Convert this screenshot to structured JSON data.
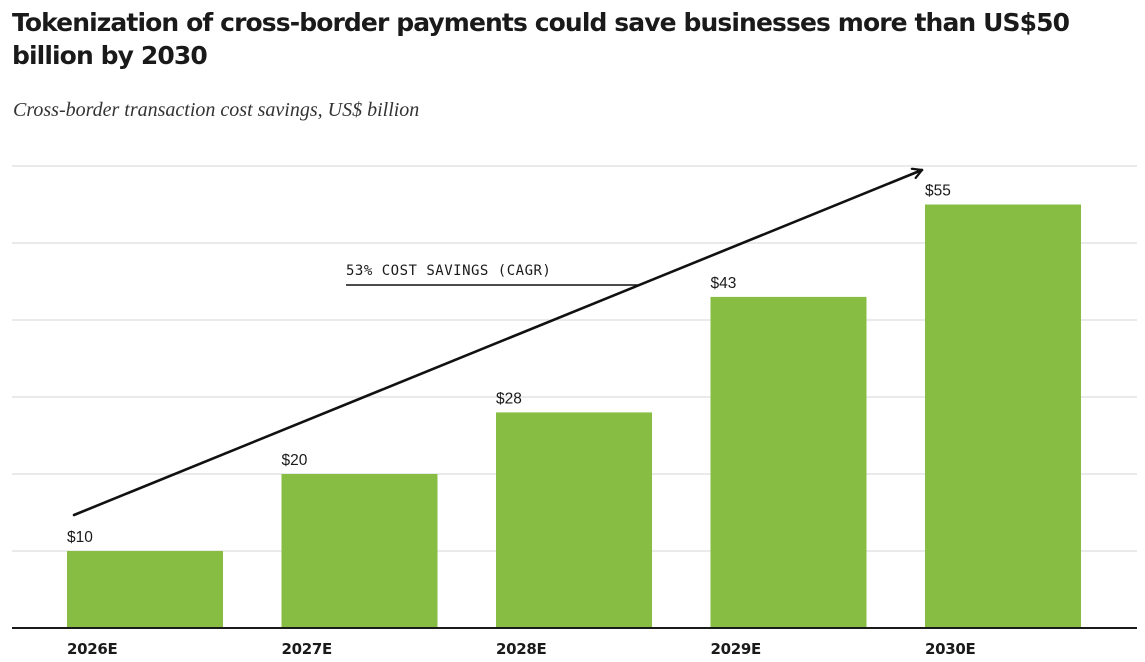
{
  "chart_data": {
    "type": "bar",
    "title": "Tokenization of cross-border payments could save businesses more than US$50 billion by 2030",
    "subtitle": "Cross-border transaction cost savings, US$ billion",
    "xlabel": "",
    "ylabel": "",
    "categories": [
      "2026E",
      "2027E",
      "2028E",
      "2029E",
      "2030E"
    ],
    "values": [
      10,
      20,
      28,
      43,
      55
    ],
    "data_labels": [
      "$10",
      "$20",
      "$28",
      "$43",
      "$55"
    ],
    "ylim": [
      0,
      60
    ],
    "grid": true,
    "legend": "none",
    "annotation": "53% COST SAVINGS (CAGR)",
    "colors": {
      "bar": "#86bd42",
      "grid": "#dddddd",
      "axis": "#1a1a1a",
      "arrow": "#111111"
    }
  }
}
